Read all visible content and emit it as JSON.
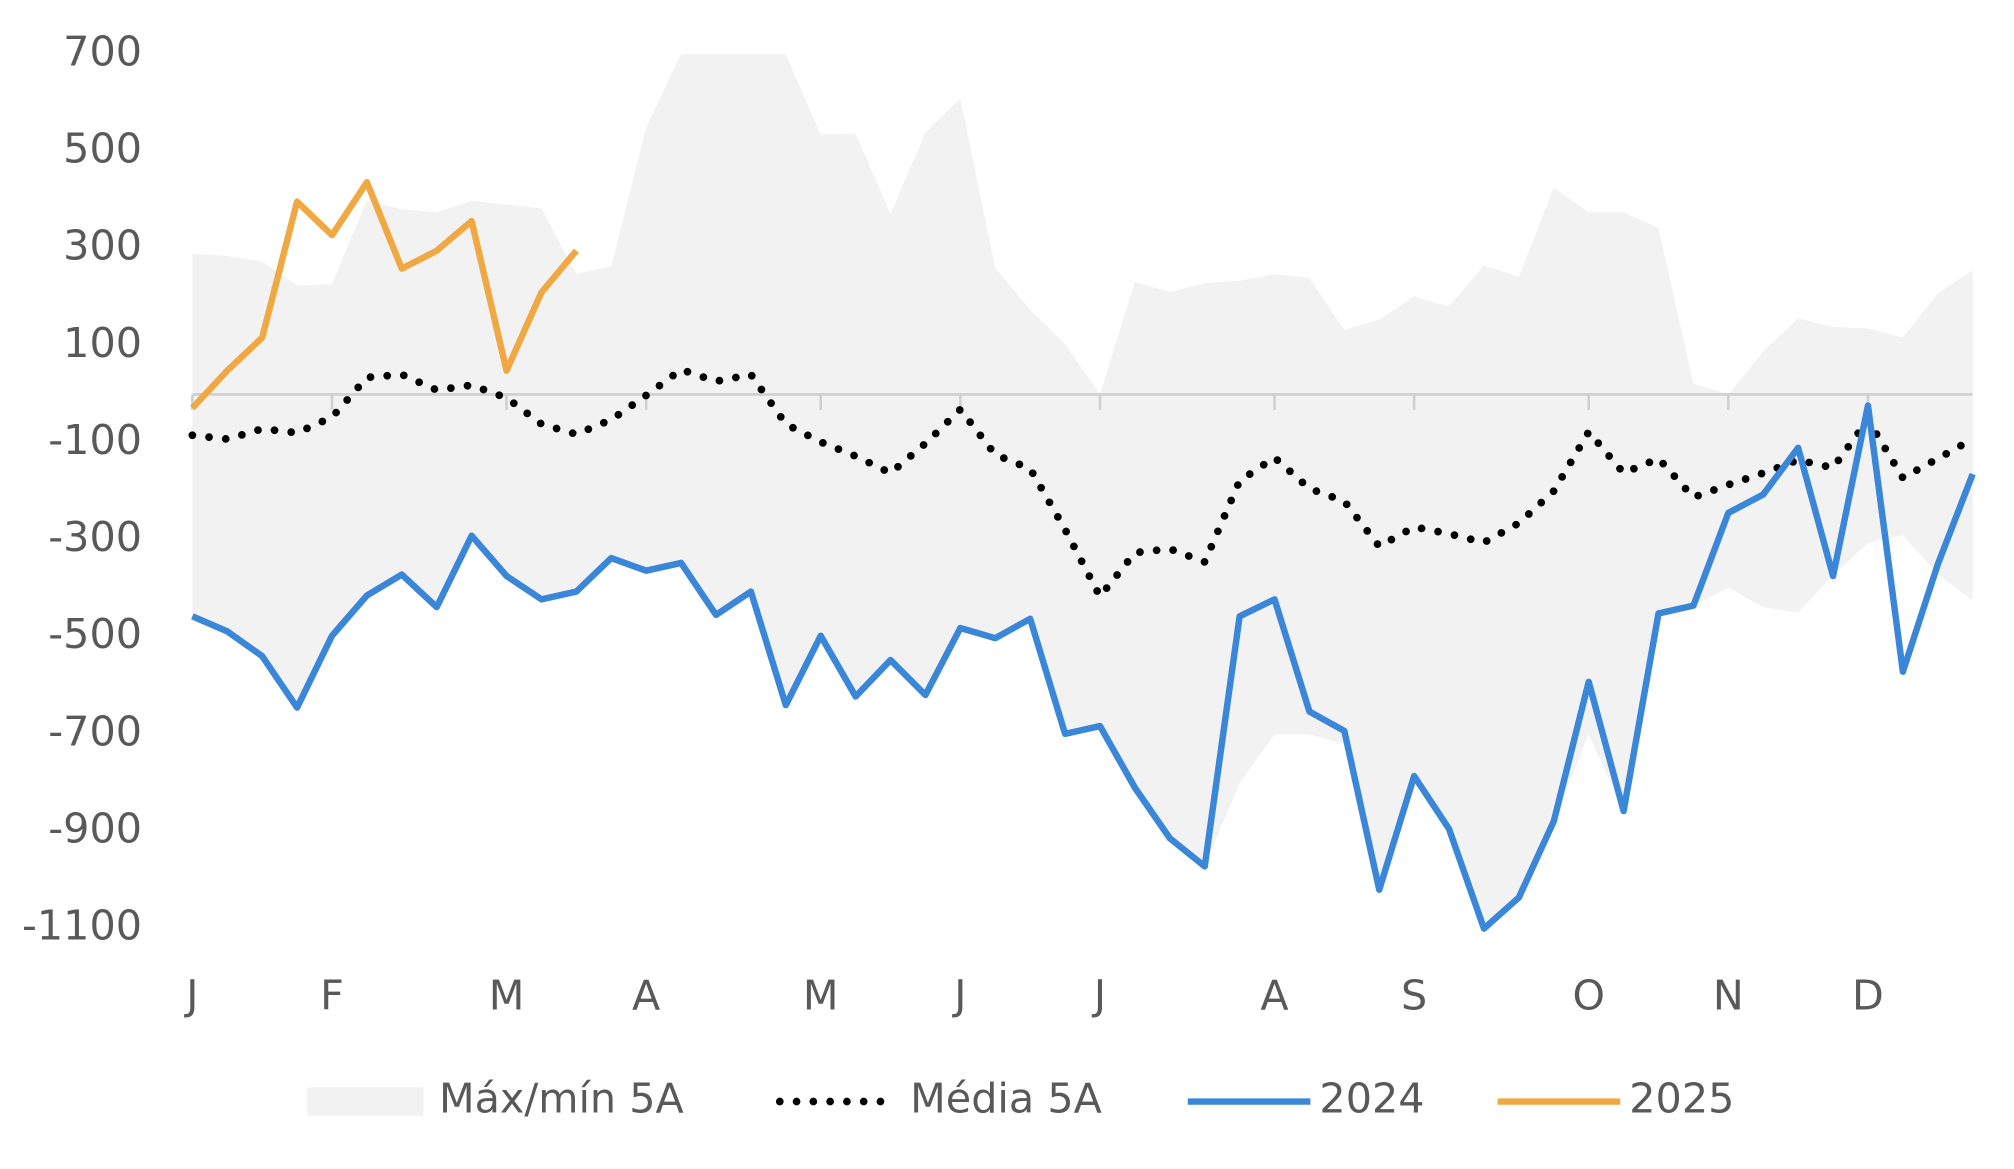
{
  "chart_data": {
    "type": "line",
    "categories": [
      "J",
      null,
      null,
      null,
      "F",
      null,
      null,
      null,
      null,
      "M",
      null,
      null,
      null,
      "A",
      null,
      null,
      null,
      null,
      "M",
      null,
      null,
      null,
      "J",
      null,
      null,
      null,
      "J",
      null,
      null,
      null,
      null,
      "A",
      null,
      null,
      null,
      "S",
      null,
      null,
      null,
      null,
      "O",
      null,
      null,
      null,
      "N",
      null,
      null,
      null,
      "D",
      null,
      null,
      null
    ],
    "ylim": [
      -1100,
      700
    ],
    "yticks": [
      700,
      500,
      300,
      100,
      -100,
      -300,
      -500,
      -700,
      -900,
      -1100
    ],
    "series": [
      {
        "name": "Máx/mín 5A",
        "type": "band",
        "color": "#f2f2f2",
        "high": [
          290,
          285,
          274,
          224,
          227,
          400,
          381,
          375,
          399,
          391,
          383,
          248,
          264,
          551,
          700,
          700,
          700,
          700,
          535,
          537,
          372,
          540,
          609,
          261,
          174,
          104,
          0,
          232,
          211,
          229,
          234,
          248,
          240,
          133,
          154,
          202,
          181,
          266,
          242,
          426,
          375,
          375,
          343,
          22,
          0,
          88,
          157,
          139,
          136,
          117,
          208,
          256
        ],
        "low": [
          -457,
          -488,
          -539,
          -645,
          -497,
          -414,
          -371,
          -438,
          -291,
          -374,
          -422,
          -406,
          -337,
          -363,
          -347,
          -454,
          -406,
          -640,
          -497,
          -622,
          -547,
          -619,
          -481,
          -502,
          -462,
          -699,
          -683,
          -810,
          -914,
          -972,
          -800,
          -700,
          -700,
          -720,
          -1020,
          -786,
          -895,
          -1100,
          -1036,
          -879,
          -700,
          -858,
          -451,
          -435,
          -398,
          -438,
          -449,
          -372,
          -306,
          -290,
          -370,
          -425
        ]
      },
      {
        "name": "Média 5A",
        "type": "dotted",
        "color": "#000000",
        "values": [
          -84,
          -92,
          -71,
          -79,
          -47,
          35,
          41,
          9,
          19,
          -7,
          -61,
          -82,
          -52,
          -2,
          51,
          27,
          41,
          -61,
          -98,
          -127,
          -162,
          -101,
          -31,
          -124,
          -153,
          -278,
          -416,
          -326,
          -318,
          -345,
          -178,
          -130,
          -194,
          -220,
          -313,
          -273,
          -287,
          -305,
          -265,
          -199,
          -77,
          -162,
          -132,
          -212,
          -186,
          -162,
          -135,
          -151,
          -52,
          -172,
          -132,
          -92
        ]
      },
      {
        "name": "2024",
        "type": "line",
        "color": "#3a86d8",
        "values": [
          -457,
          -488,
          -539,
          -645,
          -497,
          -414,
          -371,
          -438,
          -291,
          -374,
          -422,
          -406,
          -337,
          -363,
          -347,
          -454,
          -406,
          -640,
          -497,
          -622,
          -547,
          -619,
          -481,
          -502,
          -462,
          -699,
          -683,
          -810,
          -914,
          -972,
          -457,
          -422,
          -653,
          -693,
          -1020,
          -786,
          -895,
          -1100,
          -1036,
          -879,
          -592,
          -858,
          -451,
          -435,
          -244,
          -206,
          -110,
          -374,
          -23,
          -571,
          -350,
          -164
        ]
      },
      {
        "name": "2025",
        "type": "line",
        "color": "#f0a843",
        "values": [
          -28,
          49,
          117,
          397,
          328,
          437,
          259,
          296,
          357,
          49,
          210,
          296,
          null,
          null,
          null,
          null,
          null,
          null,
          null,
          null,
          null,
          null,
          null,
          null,
          null,
          null,
          null,
          null,
          null,
          null,
          null,
          null,
          null,
          null,
          null,
          null,
          null,
          null,
          null,
          null,
          null,
          null,
          null,
          null,
          null,
          null,
          null,
          null,
          null,
          null,
          null,
          null
        ]
      }
    ]
  }
}
